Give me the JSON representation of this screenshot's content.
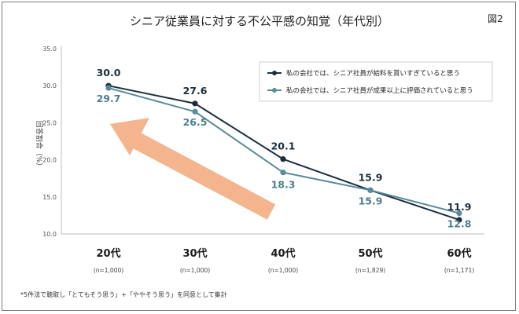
{
  "chart_data": {
    "type": "line",
    "title": "シニア従業員に対する不公平感の知覚（年代別）",
    "figure_label": "図2",
    "ylabel": "回答割合（%）",
    "ylim": [
      10.0,
      35.0
    ],
    "yticks": [
      "35.0",
      "30.0",
      "25.0",
      "20.0",
      "15.0",
      "10.0"
    ],
    "categories": [
      "20代",
      "30代",
      "40代",
      "50代",
      "60代"
    ],
    "category_notes": [
      "(n=1,000)",
      "(n=1,000)",
      "(n=1,000)",
      "(n=1,829)",
      "(n=1,171)"
    ],
    "series": [
      {
        "name": "私の会社では、シニア社員が給料を貰いすぎていると思う",
        "values": [
          30.0,
          27.6,
          20.1,
          15.9,
          11.9
        ],
        "labels": [
          "30.0",
          "27.6",
          "20.1",
          "15.9",
          "11.9"
        ],
        "color": "#1b2e3c"
      },
      {
        "name": "私の会社では、シニア社員が成果以上に評価されていると思う",
        "values": [
          29.7,
          26.5,
          18.3,
          15.9,
          12.8
        ],
        "labels": [
          "29.7",
          "26.5",
          "18.3",
          "15.9",
          "12.8"
        ],
        "color": "#5a8a98"
      }
    ],
    "arrow_color": "#f3b48e",
    "legend_position": "top-right",
    "grid": false,
    "footnote": "*5件法で聴取し「とてもそう思う」+「ややそう思う」を同意として集計"
  }
}
